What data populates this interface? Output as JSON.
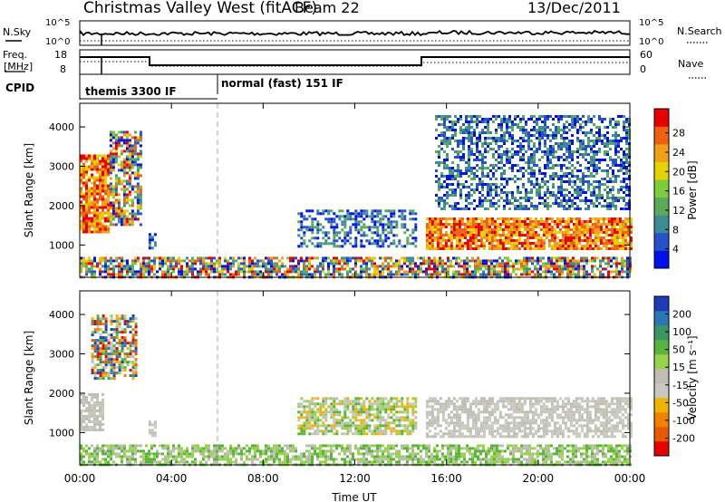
{
  "header": {
    "title": "Christmas Valley West (fitACF)",
    "beam": "Beam 22",
    "date": "13/Dec/2011"
  },
  "nsky_panel": {
    "left_label": "N.Sky",
    "left_ticks": [
      "10^5",
      "10^0"
    ],
    "right_label": "N.Search",
    "right_ticks": [
      "10^5",
      "10^0"
    ]
  },
  "freq_panel": {
    "left_label_1": "Freq.",
    "left_label_2": "[MHz]",
    "left_ticks": [
      "18",
      "8"
    ],
    "right_label": "Nave",
    "right_ticks": [
      "60",
      "0"
    ]
  },
  "cpid_panel": {
    "label": "CPID",
    "modes": [
      "themis 3300 IF",
      "normal (fast) 151 IF"
    ]
  },
  "chart_data": [
    {
      "type": "heatmap",
      "panel": "power",
      "ylabel": "Slant Range [km]",
      "xlabel": "",
      "xlim": [
        0,
        24
      ],
      "ylim": [
        180,
        4600
      ],
      "yticks": [
        "1000",
        "2000",
        "3000",
        "4000"
      ],
      "colorbar": {
        "label": "Power [dB]",
        "ticks": [
          "4",
          "8",
          "12",
          "16",
          "20",
          "24",
          "28"
        ],
        "colors": [
          "#0010e8",
          "#2850c8",
          "#3c8c96",
          "#5aaa5a",
          "#7ccc3c",
          "#e6d200",
          "#f0a018",
          "#f06014",
          "#e60000"
        ]
      },
      "regions": [
        {
          "x": [
            0.0,
            1.3
          ],
          "y": [
            1300,
            3300
          ],
          "level": "high"
        },
        {
          "x": [
            1.3,
            2.7
          ],
          "y": [
            1500,
            3900
          ],
          "level": "mixed"
        },
        {
          "x": [
            3.0,
            3.3
          ],
          "y": [
            900,
            1300
          ],
          "level": "low"
        },
        {
          "x": [
            9.5,
            14.7
          ],
          "y": [
            950,
            1900
          ],
          "level": "low"
        },
        {
          "x": [
            15.1,
            24.0
          ],
          "y": [
            900,
            1700
          ],
          "level": "high"
        },
        {
          "x": [
            15.5,
            24.0
          ],
          "y": [
            1900,
            4300
          ],
          "level": "low"
        },
        {
          "x": [
            0.0,
            24.0
          ],
          "y": [
            180,
            700
          ],
          "level": "mixed"
        }
      ]
    },
    {
      "type": "heatmap",
      "panel": "velocity",
      "ylabel": "Slant Range [km]",
      "xlabel": "Time UT",
      "xlim": [
        0,
        24
      ],
      "ylim": [
        180,
        4600
      ],
      "xticks": [
        "00:00",
        "04:00",
        "08:00",
        "12:00",
        "16:00",
        "20:00",
        "00:00"
      ],
      "yticks": [
        "1000",
        "2000",
        "3000",
        "4000"
      ],
      "colorbar": {
        "label": "Velocity [m s⁻¹]",
        "ticks": [
          "200",
          "100",
          "50",
          "15",
          "-15",
          "-50",
          "-100",
          "-200"
        ],
        "colors": [
          "#1e3cb4",
          "#2878b4",
          "#3c9664",
          "#5ab43c",
          "#96d24b",
          "#bebeb4",
          "#c8c8bf",
          "#f0b400",
          "#f08200",
          "#e65a00",
          "#e60000"
        ]
      },
      "regions": [
        {
          "x": [
            0.0,
            1.0
          ],
          "y": [
            1100,
            2000
          ],
          "level": "near-zero"
        },
        {
          "x": [
            0.5,
            2.5
          ],
          "y": [
            2400,
            4000
          ],
          "level": "mixed"
        },
        {
          "x": [
            3.0,
            3.3
          ],
          "y": [
            900,
            1300
          ],
          "level": "near-zero"
        },
        {
          "x": [
            9.5,
            14.7
          ],
          "y": [
            950,
            1900
          ],
          "level": "negative"
        },
        {
          "x": [
            15.1,
            24.0
          ],
          "y": [
            900,
            1900
          ],
          "level": "near-zero"
        },
        {
          "x": [
            0.0,
            24.0
          ],
          "y": [
            180,
            700
          ],
          "level": "low-positive"
        }
      ]
    }
  ]
}
